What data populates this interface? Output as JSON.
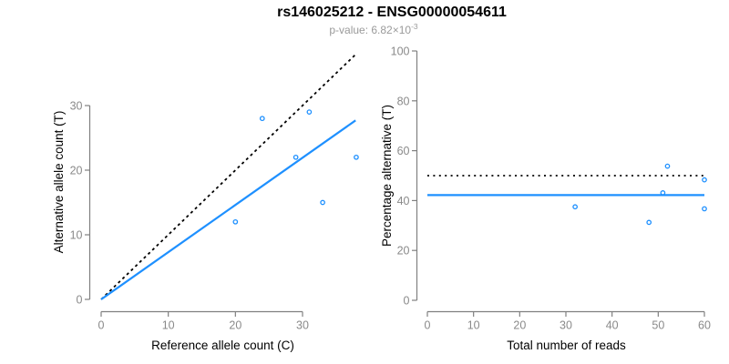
{
  "header": {
    "title": "rs146025212 - ENSG00000054611",
    "subtitle_prefix": "p-value: 6.82×10",
    "subtitle_exponent": "-3"
  },
  "colors": {
    "accent_blue": "#1E90FF",
    "point_blue": "#1E90FF",
    "reference_line_black": "#000000",
    "axis_gray": "#808080",
    "tick_label_gray": "#8a8a8a",
    "axis_label_black": "#000000",
    "title_black": "#000000",
    "subtitle_gray": "#9a9a9a",
    "background": "#ffffff"
  },
  "chart_data": [
    {
      "id": "allele-count-scatter",
      "type": "scatter",
      "xlabel": "Reference allele count (C)",
      "ylabel": "Alternative allele count (T)",
      "xlim": [
        0,
        38
      ],
      "ylim": [
        0,
        38.5
      ],
      "xticks": [
        0,
        10,
        20,
        30
      ],
      "yticks": [
        0,
        10,
        20,
        30
      ],
      "grid": false,
      "legend": null,
      "points": [
        {
          "x": 20,
          "y": 12
        },
        {
          "x": 24,
          "y": 28
        },
        {
          "x": 29,
          "y": 22
        },
        {
          "x": 31,
          "y": 29
        },
        {
          "x": 33,
          "y": 15
        },
        {
          "x": 38,
          "y": 22
        }
      ],
      "lines": [
        {
          "name": "identity-line",
          "style": "dashed",
          "color": "#000000",
          "from": [
            0,
            0
          ],
          "to": [
            37.9,
            37.9
          ]
        },
        {
          "name": "fitted-proportion-line",
          "style": "solid",
          "color": "#1E90FF",
          "from": [
            0,
            0
          ],
          "to": [
            37.9,
            27.7
          ]
        }
      ]
    },
    {
      "id": "percentage-vs-reads-scatter",
      "type": "scatter",
      "xlabel": "Total number of reads",
      "ylabel": "Percentage alternative (T)",
      "xlim": [
        0,
        60
      ],
      "ylim": [
        0,
        100
      ],
      "xticks": [
        0,
        10,
        20,
        30,
        40,
        50,
        60
      ],
      "yticks": [
        0,
        20,
        40,
        60,
        80,
        100
      ],
      "grid": false,
      "legend": null,
      "points": [
        {
          "x": 32,
          "y": 37.5
        },
        {
          "x": 48,
          "y": 31.25
        },
        {
          "x": 51,
          "y": 43.1
        },
        {
          "x": 52,
          "y": 53.8
        },
        {
          "x": 60,
          "y": 36.7
        },
        {
          "x": 60,
          "y": 48.3
        }
      ],
      "lines": [
        {
          "name": "fifty-percent-line",
          "style": "dotted",
          "color": "#000000",
          "from": [
            0,
            50
          ],
          "to": [
            60,
            50
          ]
        },
        {
          "name": "mean-percentage-line",
          "style": "solid",
          "color": "#1E90FF",
          "from": [
            0,
            42.2
          ],
          "to": [
            60,
            42.2
          ]
        }
      ]
    }
  ]
}
